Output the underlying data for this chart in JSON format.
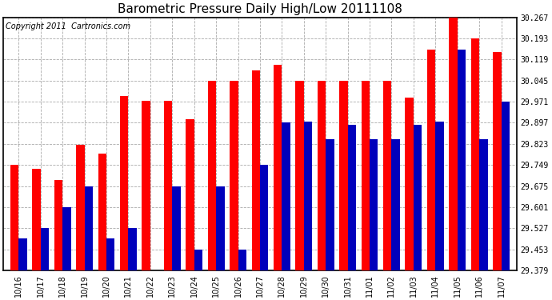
{
  "title": "Barometric Pressure Daily High/Low 20111108",
  "copyright": "Copyright 2011  Cartronics.com",
  "categories": [
    "10/16",
    "10/17",
    "10/18",
    "10/19",
    "10/20",
    "10/21",
    "10/22",
    "10/23",
    "10/24",
    "10/25",
    "10/26",
    "10/27",
    "10/28",
    "10/29",
    "10/30",
    "10/31",
    "11/01",
    "11/02",
    "11/03",
    "11/04",
    "11/05",
    "11/06",
    "11/07"
  ],
  "highs": [
    29.75,
    29.735,
    29.695,
    29.82,
    29.79,
    29.99,
    29.975,
    29.975,
    29.91,
    30.045,
    30.045,
    30.08,
    30.1,
    30.045,
    30.045,
    30.045,
    30.045,
    30.045,
    29.985,
    30.155,
    30.267,
    30.193,
    30.145
  ],
  "lows": [
    29.49,
    29.527,
    29.601,
    29.675,
    29.49,
    29.527,
    29.379,
    29.675,
    29.453,
    29.675,
    29.453,
    29.75,
    29.897,
    29.9,
    29.84,
    29.89,
    29.84,
    29.84,
    29.89,
    29.9,
    30.155,
    29.84,
    29.971
  ],
  "bar_color_high": "#FF0000",
  "bar_color_low": "#0000BB",
  "bg_color": "#FFFFFF",
  "grid_color": "#AAAAAA",
  "ymin": 29.379,
  "ymax": 30.267,
  "yticks": [
    29.379,
    29.453,
    29.527,
    29.601,
    29.675,
    29.749,
    29.823,
    29.897,
    29.971,
    30.045,
    30.119,
    30.193,
    30.267
  ],
  "title_fontsize": 11,
  "copyright_fontsize": 7,
  "tick_fontsize": 7,
  "bar_width": 0.38,
  "figwidth": 6.9,
  "figheight": 3.75,
  "dpi": 100
}
